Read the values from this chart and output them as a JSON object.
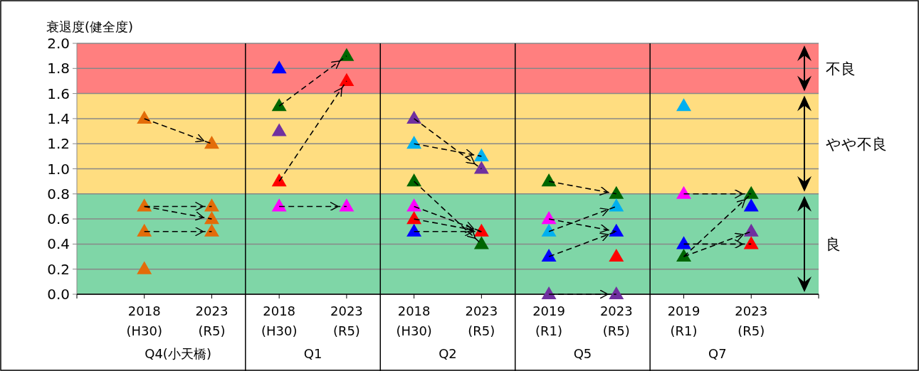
{
  "chart_data": {
    "type": "scatter",
    "ylabel": "衰退度(健全度)",
    "marker": "triangle",
    "line_style": "dashed",
    "grid": "y",
    "categories": [
      null,
      "2018\n(H30)",
      "2023\n(R5)",
      "2018\n(H30)",
      "2023\n(R5)",
      "2018\n(H30)",
      "2023\n(R5)",
      "2019\n(R1)",
      "2023\n(R5)",
      "2019\n(R1)",
      "2023\n(R5)",
      null
    ],
    "annotations": [
      "Q4(小天橋)",
      "Q1",
      "Q2",
      "Q5",
      "Q7"
    ],
    "ylim": [
      0,
      2.0
    ],
    "yticks": [
      {
        "value": 0,
        "label": "0.0"
      },
      0.2,
      0.4,
      0.6,
      0.8,
      {
        "value": 1,
        "label": "1.0"
      },
      1.2,
      1.4,
      1.6,
      1.8,
      {
        "value": 2,
        "label": "2.0"
      }
    ],
    "bands": [
      {
        "axis": "y",
        "from": 1.6,
        "to": 2.0,
        "label": "不良",
        "color": "#ff7f7f"
      },
      {
        "axis": "y",
        "from": 0.8,
        "to": 1.6,
        "label": "やや不良",
        "color": "#ffdd80"
      },
      {
        "axis": "y",
        "from": 0,
        "to": 0.8,
        "label": "良",
        "color": "#7fd6a7"
      }
    ],
    "series": [
      {
        "type": "line",
        "color": "#000000",
        "marker": "none",
        "values": [
          null,
          1.4,
          1.2,
          null,
          null,
          null,
          null,
          null,
          null,
          null,
          null,
          null
        ]
      },
      {
        "type": "line",
        "color": "#000000",
        "marker": "none",
        "values": [
          null,
          0.7,
          0.7,
          null,
          null,
          null,
          null,
          null,
          null,
          null,
          null,
          null
        ]
      },
      {
        "type": "line",
        "color": "#000000",
        "marker": "none",
        "values": [
          null,
          0.7,
          0.6,
          null,
          null,
          null,
          null,
          null,
          null,
          null,
          null,
          null
        ]
      },
      {
        "type": "line",
        "color": "#000000",
        "marker": "none",
        "values": [
          null,
          0.5,
          0.5,
          null,
          null,
          null,
          null,
          null,
          null,
          null,
          null,
          null
        ]
      },
      {
        "type": "line",
        "color": "#000000",
        "marker": "none",
        "values": [
          null,
          null,
          null,
          1.5,
          1.9,
          null,
          null,
          null,
          null,
          null,
          null,
          null
        ]
      },
      {
        "type": "line",
        "color": "#000000",
        "marker": "none",
        "values": [
          null,
          null,
          null,
          0.9,
          1.7,
          null,
          null,
          null,
          null,
          null,
          null,
          null
        ]
      },
      {
        "type": "line",
        "color": "#000000",
        "marker": "none",
        "values": [
          null,
          null,
          null,
          0.7,
          0.7,
          null,
          null,
          null,
          null,
          null,
          null,
          null
        ]
      },
      {
        "type": "line",
        "color": "#000000",
        "marker": "none",
        "values": [
          null,
          null,
          null,
          null,
          null,
          1.4,
          1.0,
          null,
          null,
          null,
          null,
          null
        ]
      },
      {
        "type": "line",
        "color": "#000000",
        "marker": "none",
        "values": [
          null,
          null,
          null,
          null,
          null,
          1.2,
          1.1,
          null,
          null,
          null,
          null,
          null
        ]
      },
      {
        "type": "line",
        "color": "#000000",
        "marker": "none",
        "values": [
          null,
          null,
          null,
          null,
          null,
          0.9,
          0.4,
          null,
          null,
          null,
          null,
          null
        ]
      },
      {
        "type": "line",
        "color": "#000000",
        "marker": "none",
        "values": [
          null,
          null,
          null,
          null,
          null,
          0.7,
          0.5,
          null,
          null,
          null,
          null,
          null
        ]
      },
      {
        "type": "line",
        "color": "#000000",
        "marker": "none",
        "values": [
          null,
          null,
          null,
          null,
          null,
          0.6,
          0.5,
          null,
          null,
          null,
          null,
          null
        ]
      },
      {
        "type": "line",
        "color": "#000000",
        "marker": "none",
        "values": [
          null,
          null,
          null,
          null,
          null,
          0.5,
          0.5,
          null,
          null,
          null,
          null,
          null
        ]
      },
      {
        "type": "line",
        "color": "#000000",
        "marker": "none",
        "values": [
          null,
          null,
          null,
          null,
          null,
          null,
          null,
          0.9,
          0.8,
          null,
          null,
          null
        ]
      },
      {
        "type": "line",
        "color": "#000000",
        "marker": "none",
        "values": [
          null,
          null,
          null,
          null,
          null,
          null,
          null,
          0.5,
          0.7,
          null,
          null,
          null
        ]
      },
      {
        "type": "line",
        "color": "#000000",
        "marker": "none",
        "values": [
          null,
          null,
          null,
          null,
          null,
          null,
          null,
          0.6,
          0.5,
          null,
          null,
          null
        ]
      },
      {
        "type": "line",
        "color": "#000000",
        "marker": "none",
        "values": [
          null,
          null,
          null,
          null,
          null,
          null,
          null,
          0.3,
          0.5,
          null,
          null,
          null
        ]
      },
      {
        "type": "line",
        "color": "#000000",
        "marker": "none",
        "values": [
          null,
          null,
          null,
          null,
          null,
          null,
          null,
          0.0,
          0.0,
          null,
          null,
          null
        ]
      },
      {
        "type": "line",
        "color": "#000000",
        "marker": "none",
        "values": [
          null,
          null,
          null,
          null,
          null,
          null,
          null,
          null,
          null,
          0.8,
          0.8,
          null
        ]
      },
      {
        "type": "line",
        "color": "#000000",
        "marker": "none",
        "values": [
          null,
          null,
          null,
          null,
          null,
          null,
          null,
          null,
          null,
          0.3,
          0.8,
          null
        ]
      },
      {
        "type": "line",
        "color": "#000000",
        "marker": "none",
        "values": [
          null,
          null,
          null,
          null,
          null,
          null,
          null,
          null,
          null,
          0.3,
          0.5,
          null
        ]
      },
      {
        "type": "line",
        "color": "#000000",
        "marker": "none",
        "values": [
          null,
          null,
          null,
          null,
          null,
          null,
          null,
          null,
          null,
          0.4,
          0.4,
          null
        ]
      },
      {
        "color": "#e36c09",
        "values": [
          null,
          1.4,
          1.2,
          null,
          null,
          null,
          null,
          null,
          null,
          null,
          null,
          null
        ]
      },
      {
        "color": "#e36c09",
        "values": [
          null,
          0.7,
          0.7,
          null,
          null,
          null,
          null,
          null,
          null,
          null,
          null,
          null
        ]
      },
      {
        "color": "#e36c09",
        "values": [
          null,
          0.5,
          0.6,
          null,
          null,
          null,
          null,
          null,
          null,
          null,
          null,
          null
        ]
      },
      {
        "color": "#e36c09",
        "values": [
          null,
          0.2,
          0.5,
          null,
          null,
          null,
          null,
          null,
          null,
          null,
          null,
          null
        ]
      },
      {
        "color": "#0000ff",
        "values": [
          null,
          null,
          null,
          1.8,
          null,
          0.5,
          null,
          0.3,
          0.5,
          0.4,
          0.7,
          null
        ]
      },
      {
        "color": "#006600",
        "values": [
          null,
          null,
          null,
          1.5,
          1.9,
          0.9,
          0.4,
          0.9,
          0.8,
          0.3,
          0.8,
          null
        ]
      },
      {
        "color": "#7030a0",
        "values": [
          null,
          null,
          null,
          1.3,
          null,
          1.4,
          1.0,
          0.0,
          0.0,
          null,
          0.5,
          null
        ]
      },
      {
        "color": "#ff0000",
        "values": [
          null,
          null,
          null,
          0.9,
          1.7,
          0.6,
          0.5,
          null,
          0.3,
          null,
          0.4,
          null
        ]
      },
      {
        "color": "#ff00ff",
        "values": [
          null,
          null,
          null,
          0.7,
          0.7,
          0.7,
          null,
          0.6,
          null,
          0.8,
          null,
          null
        ]
      },
      {
        "color": "#00b0f0",
        "values": [
          null,
          null,
          null,
          null,
          null,
          1.2,
          1.1,
          0.5,
          0.7,
          1.5,
          null,
          null
        ]
      }
    ]
  }
}
